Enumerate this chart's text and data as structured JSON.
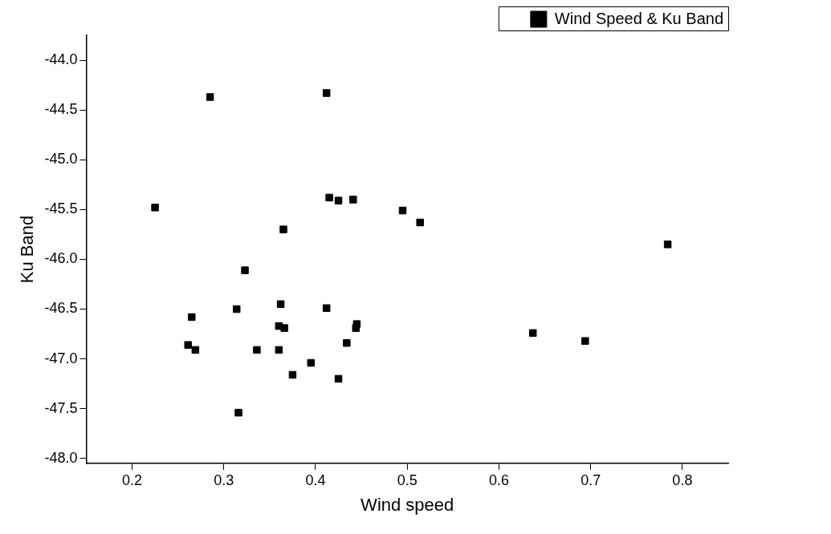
{
  "chart_data": {
    "type": "scatter",
    "xlabel": "Wind speed",
    "ylabel": "Ku Band",
    "legend": "top right",
    "marker": "square",
    "grid": false,
    "series": [
      {
        "name": "Wind Speed & Ku Band",
        "color": "#000000",
        "x": [
          0.285,
          0.412,
          0.225,
          0.415,
          0.425,
          0.441,
          0.495,
          0.514,
          0.365,
          0.784,
          0.323,
          0.265,
          0.314,
          0.362,
          0.412,
          0.36,
          0.366,
          0.445,
          0.444,
          0.434,
          0.261,
          0.269,
          0.336,
          0.36,
          0.395,
          0.375,
          0.425,
          0.316,
          0.637,
          0.694
        ],
        "values": [
          -44.37,
          -44.33,
          -45.48,
          -45.38,
          -45.41,
          -45.4,
          -45.51,
          -45.63,
          -45.7,
          -45.85,
          -46.11,
          -46.58,
          -46.5,
          -46.45,
          -46.49,
          -46.67,
          -46.69,
          -46.65,
          -46.69,
          -46.84,
          -46.86,
          -46.91,
          -46.91,
          -46.91,
          -47.04,
          -47.16,
          -47.2,
          -47.54,
          -46.74,
          -46.82
        ]
      }
    ],
    "xlim": [
      0.15,
      0.85
    ],
    "xticks": [
      0.2,
      0.3,
      0.4,
      0.5,
      0.6,
      0.7,
      0.8
    ],
    "ylim": [
      -48.05,
      -43.75
    ],
    "yticks": [
      {
        "value": -48,
        "label": "-48.0"
      },
      {
        "value": -47.5,
        "label": "-47.5"
      },
      {
        "value": -47,
        "label": "-47.0"
      },
      {
        "value": -46.5,
        "label": "-46.5"
      },
      {
        "value": -46,
        "label": "-46.0"
      },
      {
        "value": -45.5,
        "label": "-45.5"
      },
      {
        "value": -45,
        "label": "-45.0"
      },
      {
        "value": -44.5,
        "label": "-44.5"
      },
      {
        "value": -44,
        "label": "-44.0"
      }
    ]
  }
}
